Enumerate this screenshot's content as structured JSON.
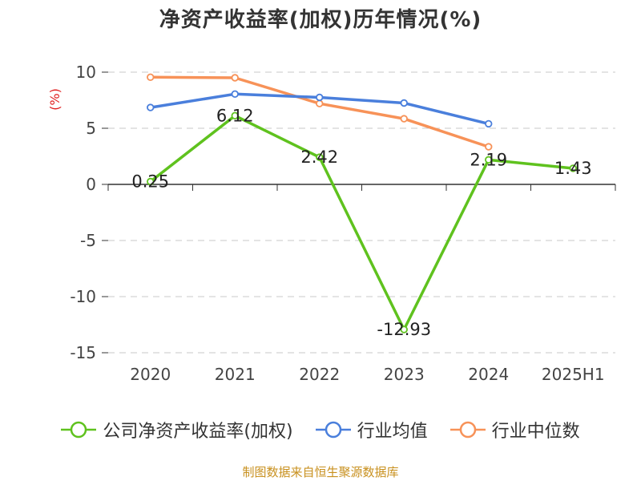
{
  "chart_data": {
    "type": "line",
    "title": "净资产收益率(加权)历年情况(%)",
    "ylabel": "(%)",
    "categories": [
      "2020",
      "2021",
      "2022",
      "2023",
      "2024",
      "2025H1"
    ],
    "ylim": [
      -15,
      10
    ],
    "yticks": [
      10,
      5,
      0,
      -5,
      -10,
      -15
    ],
    "grid": true,
    "legend_position": "bottom",
    "series": [
      {
        "name": "公司净资产收益率(加权)",
        "color": "#5fc21e",
        "values": [
          0.25,
          6.12,
          2.42,
          -12.93,
          2.19,
          1.43
        ],
        "labels": [
          "0.25",
          "6.12",
          "2.42",
          "-12.93",
          "2.19",
          "1.43"
        ]
      },
      {
        "name": "行业均值",
        "color": "#4a7fdc",
        "values": [
          6.85,
          8.05,
          7.75,
          7.25,
          5.4,
          null
        ]
      },
      {
        "name": "行业中位数",
        "color": "#f79258",
        "values": [
          9.55,
          9.5,
          7.2,
          5.85,
          3.35,
          null
        ]
      }
    ]
  },
  "source": "制图数据来自恒生聚源数据库"
}
